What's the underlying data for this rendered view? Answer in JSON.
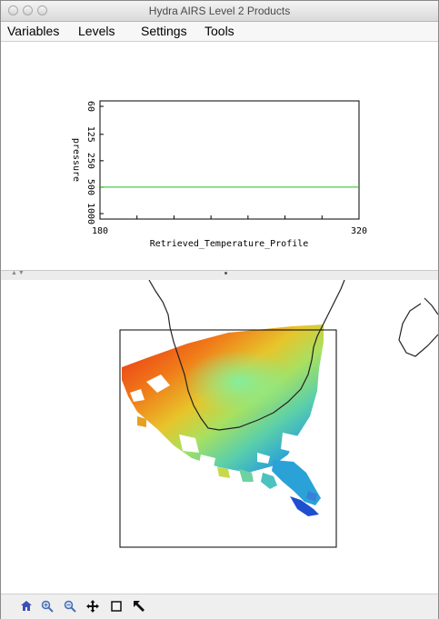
{
  "window": {
    "title": "Hydra AIRS Level 2 Products"
  },
  "menu": [
    "Variables",
    "Levels",
    "Settings",
    "Tools"
  ],
  "chart_data": {
    "type": "line",
    "title": "",
    "xlabel": "Retrieved_Temperature_Profile",
    "ylabel": "pressure",
    "xlim": [
      180,
      320
    ],
    "x_ticks": [
      "180",
      "320"
    ],
    "y_ticks": [
      "60",
      "125",
      "250",
      "500",
      "1000"
    ],
    "y_scale": "log",
    "grid": false,
    "series": [
      {
        "color": "#22bb22",
        "x": [
          180,
          320
        ],
        "y": [
          500,
          500
        ]
      }
    ]
  },
  "toolbar": {
    "tools": [
      {
        "name": "home-icon",
        "color": "#3b4fb8"
      },
      {
        "name": "zoom-in-icon",
        "color": "#4a6fae"
      },
      {
        "name": "zoom-out-icon",
        "color": "#4a6fae"
      },
      {
        "name": "pan-icon",
        "color": "#111111"
      },
      {
        "name": "zoom-rect-icon",
        "color": "#111111"
      },
      {
        "name": "pointer-arrow-icon",
        "color": "#111111"
      }
    ]
  }
}
